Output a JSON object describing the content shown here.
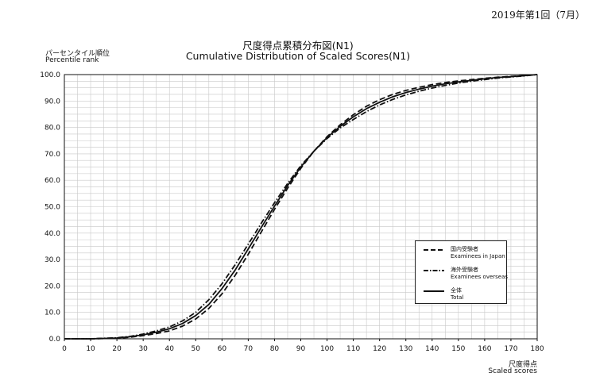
{
  "edition_label": "2019年第1回（7月）",
  "chart_data": {
    "type": "line",
    "title": "尺度得点累積分布図(N1)",
    "subtitle": "Cumulative Distribution of Scaled Scores(N1)",
    "ylabel_jp": "パーセンタイル順位",
    "ylabel": "Percentile rank",
    "xlabel_jp": "尺度得点",
    "xlabel": "Scaled scores",
    "xlim": [
      0,
      180
    ],
    "ylim": [
      0,
      100
    ],
    "x_ticks": [
      "0",
      "10",
      "20",
      "30",
      "40",
      "50",
      "60",
      "70",
      "80",
      "90",
      "100",
      "110",
      "120",
      "130",
      "140",
      "150",
      "160",
      "170",
      "180"
    ],
    "y_ticks": [
      "0.0",
      "10.0",
      "20.0",
      "30.0",
      "40.0",
      "50.0",
      "60.0",
      "70.0",
      "80.0",
      "90.0",
      "100.0"
    ],
    "grid": true,
    "legend_position": "bottom-right",
    "x": [
      0,
      10,
      20,
      25,
      30,
      35,
      40,
      45,
      50,
      55,
      60,
      65,
      70,
      75,
      80,
      85,
      90,
      95,
      100,
      105,
      110,
      115,
      120,
      125,
      130,
      135,
      140,
      145,
      150,
      155,
      160,
      165,
      170,
      175,
      180
    ],
    "series": [
      {
        "name_jp": "国内受験者",
        "name": "Examinees in Japan",
        "style": "dashed",
        "values": [
          0,
          0,
          0.2,
          0.6,
          1.2,
          2.0,
          3.0,
          4.8,
          7.5,
          11.5,
          17.0,
          24.0,
          32.0,
          40.5,
          49.0,
          57.0,
          64.5,
          71.0,
          76.5,
          81.0,
          84.8,
          88.0,
          90.5,
          92.5,
          94.0,
          95.2,
          96.2,
          97.0,
          97.6,
          98.1,
          98.6,
          99.0,
          99.3,
          99.6,
          100
        ]
      },
      {
        "name_jp": "海外受験者",
        "name": "Examinees overseas",
        "style": "dashdot",
        "values": [
          0,
          0,
          0.4,
          0.9,
          1.8,
          3.0,
          4.5,
          6.8,
          10.0,
          14.8,
          20.8,
          28.0,
          35.8,
          43.8,
          51.5,
          58.8,
          65.5,
          71.0,
          75.8,
          79.8,
          83.0,
          86.0,
          88.5,
          90.6,
          92.3,
          93.7,
          94.9,
          95.9,
          96.8,
          97.5,
          98.1,
          98.7,
          99.1,
          99.5,
          100
        ]
      },
      {
        "name_jp": "全体",
        "name": "Total",
        "style": "solid",
        "values": [
          0,
          0,
          0.3,
          0.8,
          1.5,
          2.5,
          3.8,
          5.8,
          8.8,
          13.0,
          19.0,
          26.0,
          34.0,
          42.2,
          50.2,
          58.0,
          65.0,
          71.0,
          76.2,
          80.4,
          84.0,
          87.1,
          89.5,
          91.6,
          93.2,
          94.5,
          95.6,
          96.5,
          97.2,
          97.8,
          98.4,
          98.9,
          99.2,
          99.6,
          100
        ]
      }
    ]
  }
}
